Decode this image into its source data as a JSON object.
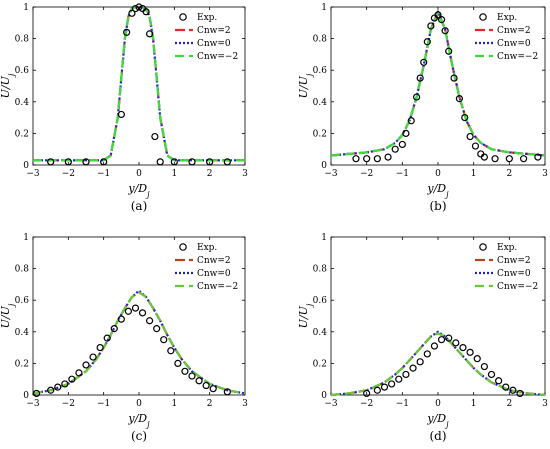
{
  "chart_data": [
    {
      "type": "line",
      "caption": "(a)",
      "xlabel": "y/D_j",
      "ylabel": "U/U_j",
      "xlim": [
        -3,
        3
      ],
      "ylim": [
        0,
        1
      ],
      "xticks": [
        -3,
        -2,
        -1,
        0,
        1,
        2,
        3
      ],
      "yticks": [
        0,
        0.2,
        0.4,
        0.6,
        0.8,
        1
      ],
      "xtick_labels": [
        "−3",
        "−2",
        "−1",
        "0",
        "1",
        "2",
        "3"
      ],
      "ytick_labels": [
        "0",
        "0.2",
        "0.4",
        "0.6",
        "0.8",
        "1"
      ],
      "legend_position": "top-right",
      "experiment": {
        "name": "Exp.",
        "x": [
          -2.5,
          -2.0,
          -1.5,
          -1.0,
          -0.5,
          -0.35,
          -0.2,
          -0.1,
          0.0,
          0.1,
          0.2,
          0.3,
          0.45,
          0.6,
          1.0,
          1.5,
          2.0,
          2.5
        ],
        "y": [
          0.02,
          0.02,
          0.02,
          0.02,
          0.32,
          0.84,
          0.96,
          0.99,
          1.0,
          0.99,
          0.97,
          0.83,
          0.18,
          0.02,
          0.02,
          0.02,
          0.02,
          0.02
        ]
      },
      "series": [
        {
          "name": "Cnw=2",
          "color": "#e8262b",
          "dash": "10,4",
          "x": [
            -3,
            -2,
            -1,
            -0.8,
            -0.6,
            -0.5,
            -0.4,
            -0.3,
            -0.2,
            -0.1,
            0,
            0.1,
            0.2,
            0.3,
            0.4,
            0.5,
            0.6,
            0.8,
            1,
            2,
            3
          ],
          "y": [
            0.03,
            0.03,
            0.03,
            0.06,
            0.3,
            0.55,
            0.8,
            0.94,
            0.99,
            1.0,
            1.0,
            1.0,
            0.99,
            0.94,
            0.8,
            0.55,
            0.3,
            0.06,
            0.03,
            0.03,
            0.03
          ]
        },
        {
          "name": "Cnw=0",
          "color": "#1f22c4",
          "dash": "2,2",
          "x": [
            -3,
            -2,
            -1,
            -0.8,
            -0.6,
            -0.5,
            -0.4,
            -0.3,
            -0.2,
            -0.1,
            0,
            0.1,
            0.2,
            0.3,
            0.4,
            0.5,
            0.6,
            0.8,
            1,
            2,
            3
          ],
          "y": [
            0.03,
            0.03,
            0.03,
            0.06,
            0.3,
            0.55,
            0.8,
            0.94,
            0.99,
            1.0,
            1.0,
            1.0,
            0.99,
            0.94,
            0.8,
            0.55,
            0.3,
            0.06,
            0.03,
            0.03,
            0.03
          ]
        },
        {
          "name": "Cnw=−2",
          "color": "#3ddc3d",
          "dash": "9,5",
          "x": [
            -3,
            -2,
            -1,
            -0.8,
            -0.6,
            -0.5,
            -0.4,
            -0.3,
            -0.2,
            -0.1,
            0,
            0.1,
            0.2,
            0.3,
            0.4,
            0.5,
            0.6,
            0.8,
            1,
            2,
            3
          ],
          "y": [
            0.03,
            0.03,
            0.03,
            0.06,
            0.3,
            0.55,
            0.8,
            0.94,
            0.99,
            1.0,
            1.0,
            1.0,
            0.99,
            0.94,
            0.8,
            0.55,
            0.3,
            0.06,
            0.03,
            0.03,
            0.03
          ]
        }
      ]
    },
    {
      "type": "line",
      "caption": "(b)",
      "xlabel": "y/D_j",
      "ylabel": "U/U_j",
      "xlim": [
        -3,
        3
      ],
      "ylim": [
        0,
        1
      ],
      "xticks": [
        -3,
        -2,
        -1,
        0,
        1,
        2,
        3
      ],
      "yticks": [
        0,
        0.2,
        0.4,
        0.6,
        0.8,
        1
      ],
      "xtick_labels": [
        "−3",
        "−2",
        "−1",
        "0",
        "1",
        "2",
        "3"
      ],
      "ytick_labels": [
        "0",
        "0.2",
        "0.4",
        "0.6",
        "0.8",
        "1"
      ],
      "legend_position": "top-right",
      "experiment": {
        "name": "Exp.",
        "x": [
          -2.3,
          -2.0,
          -1.7,
          -1.4,
          -1.2,
          -1.0,
          -0.9,
          -0.75,
          -0.6,
          -0.5,
          -0.4,
          -0.3,
          -0.2,
          -0.1,
          0.0,
          0.1,
          0.2,
          0.3,
          0.45,
          0.6,
          0.75,
          0.9,
          1.05,
          1.2,
          1.3,
          1.6,
          2.0,
          2.4,
          2.8
        ],
        "y": [
          0.04,
          0.04,
          0.04,
          0.05,
          0.1,
          0.13,
          0.2,
          0.28,
          0.43,
          0.55,
          0.65,
          0.78,
          0.88,
          0.93,
          0.95,
          0.92,
          0.85,
          0.72,
          0.55,
          0.42,
          0.3,
          0.18,
          0.12,
          0.07,
          0.05,
          0.04,
          0.04,
          0.04,
          0.05
        ]
      },
      "series": [
        {
          "name": "Cnw=2",
          "color": "#e8262b",
          "dash": "10,4",
          "x": [
            -3,
            -2.5,
            -2,
            -1.5,
            -1.2,
            -1,
            -0.8,
            -0.6,
            -0.4,
            -0.2,
            0,
            0.2,
            0.4,
            0.6,
            0.8,
            1,
            1.2,
            1.5,
            2,
            2.5,
            3
          ],
          "y": [
            0.06,
            0.07,
            0.08,
            0.1,
            0.14,
            0.19,
            0.28,
            0.43,
            0.63,
            0.86,
            0.97,
            0.86,
            0.63,
            0.43,
            0.28,
            0.19,
            0.14,
            0.1,
            0.08,
            0.07,
            0.06
          ]
        },
        {
          "name": "Cnw=0",
          "color": "#1f22c4",
          "dash": "2,2",
          "x": [
            -3,
            -2.5,
            -2,
            -1.5,
            -1.2,
            -1,
            -0.8,
            -0.6,
            -0.4,
            -0.2,
            0,
            0.2,
            0.4,
            0.6,
            0.8,
            1,
            1.2,
            1.5,
            2,
            2.5,
            3
          ],
          "y": [
            0.06,
            0.07,
            0.08,
            0.1,
            0.14,
            0.19,
            0.28,
            0.43,
            0.63,
            0.86,
            0.97,
            0.86,
            0.63,
            0.43,
            0.28,
            0.19,
            0.14,
            0.1,
            0.08,
            0.07,
            0.06
          ]
        },
        {
          "name": "Cnw=−2",
          "color": "#3ddc3d",
          "dash": "9,5",
          "x": [
            -3,
            -2.5,
            -2,
            -1.5,
            -1.2,
            -1,
            -0.8,
            -0.6,
            -0.4,
            -0.2,
            0,
            0.2,
            0.4,
            0.6,
            0.8,
            1,
            1.2,
            1.5,
            2,
            2.5,
            3
          ],
          "y": [
            0.06,
            0.07,
            0.08,
            0.1,
            0.14,
            0.19,
            0.28,
            0.43,
            0.63,
            0.86,
            0.96,
            0.86,
            0.63,
            0.43,
            0.28,
            0.19,
            0.14,
            0.1,
            0.08,
            0.07,
            0.06
          ]
        }
      ]
    },
    {
      "type": "line",
      "caption": "(c)",
      "xlabel": "y/D_j",
      "ylabel": "U/U_j",
      "xlim": [
        -3,
        3
      ],
      "ylim": [
        0,
        1
      ],
      "xticks": [
        -3,
        -2,
        -1,
        0,
        1,
        2,
        3
      ],
      "yticks": [
        0,
        0.2,
        0.4,
        0.6,
        0.8,
        1
      ],
      "xtick_labels": [
        "−3",
        "−2",
        "−1",
        "0",
        "1",
        "2",
        "3"
      ],
      "ytick_labels": [
        "0",
        "0.2",
        "0.4",
        "0.6",
        "0.8",
        "1"
      ],
      "legend_position": "top-right",
      "experiment": {
        "name": "Exp.",
        "x": [
          -2.9,
          -2.5,
          -2.3,
          -2.1,
          -1.9,
          -1.7,
          -1.5,
          -1.3,
          -1.1,
          -0.9,
          -0.7,
          -0.5,
          -0.3,
          -0.1,
          0.1,
          0.3,
          0.5,
          0.7,
          0.9,
          1.1,
          1.3,
          1.5,
          1.7,
          1.9,
          2.1,
          2.5
        ],
        "y": [
          0.01,
          0.03,
          0.05,
          0.07,
          0.1,
          0.14,
          0.19,
          0.24,
          0.3,
          0.36,
          0.42,
          0.48,
          0.53,
          0.55,
          0.52,
          0.47,
          0.42,
          0.35,
          0.28,
          0.2,
          0.15,
          0.12,
          0.09,
          0.06,
          0.04,
          0.02
        ]
      },
      "series": [
        {
          "name": "Cnw=2",
          "color": "#b5431f",
          "dash": "10,4",
          "x": [
            -3,
            -2.5,
            -2,
            -1.5,
            -1.2,
            -1,
            -0.8,
            -0.6,
            -0.4,
            -0.2,
            0,
            0.2,
            0.4,
            0.6,
            0.8,
            1,
            1.2,
            1.5,
            2,
            2.5,
            3
          ],
          "y": [
            0.01,
            0.03,
            0.07,
            0.15,
            0.23,
            0.3,
            0.38,
            0.47,
            0.55,
            0.62,
            0.65,
            0.62,
            0.55,
            0.47,
            0.38,
            0.3,
            0.23,
            0.15,
            0.07,
            0.03,
            0.01
          ]
        },
        {
          "name": "Cnw=0",
          "color": "#1f22c4",
          "dash": "2,2",
          "x": [
            -3,
            -2.5,
            -2,
            -1.5,
            -1.2,
            -1,
            -0.8,
            -0.6,
            -0.4,
            -0.2,
            0,
            0.2,
            0.4,
            0.6,
            0.8,
            1,
            1.2,
            1.5,
            2,
            2.5,
            3
          ],
          "y": [
            0.01,
            0.03,
            0.07,
            0.15,
            0.23,
            0.3,
            0.38,
            0.47,
            0.55,
            0.62,
            0.66,
            0.62,
            0.55,
            0.47,
            0.38,
            0.3,
            0.23,
            0.15,
            0.07,
            0.03,
            0.01
          ]
        },
        {
          "name": "Cnw=−2",
          "color": "#67c93a",
          "dash": "9,5",
          "x": [
            -3,
            -2.5,
            -2,
            -1.5,
            -1.2,
            -1,
            -0.8,
            -0.6,
            -0.4,
            -0.2,
            0,
            0.2,
            0.4,
            0.6,
            0.8,
            1,
            1.2,
            1.5,
            2,
            2.5,
            3
          ],
          "y": [
            0.01,
            0.03,
            0.07,
            0.15,
            0.23,
            0.3,
            0.38,
            0.47,
            0.55,
            0.62,
            0.65,
            0.62,
            0.55,
            0.47,
            0.38,
            0.3,
            0.23,
            0.15,
            0.07,
            0.03,
            0.01
          ]
        }
      ]
    },
    {
      "type": "line",
      "caption": "(d)",
      "xlabel": "y/D_j",
      "ylabel": "U/U_j",
      "xlim": [
        -3,
        3
      ],
      "ylim": [
        0,
        1
      ],
      "xticks": [
        -3,
        -2,
        -1,
        0,
        1,
        2,
        3
      ],
      "yticks": [
        0,
        0.2,
        0.4,
        0.6,
        0.8,
        1
      ],
      "xtick_labels": [
        "−3",
        "−2",
        "−1",
        "0",
        "1",
        "2",
        "3"
      ],
      "ytick_labels": [
        "0",
        "0.2",
        "0.4",
        "0.6",
        "0.8",
        "1"
      ],
      "legend_position": "top-right",
      "experiment": {
        "name": "Exp.",
        "x": [
          -2.0,
          -1.7,
          -1.5,
          -1.3,
          -1.1,
          -0.9,
          -0.7,
          -0.5,
          -0.3,
          -0.1,
          0.1,
          0.3,
          0.5,
          0.7,
          0.9,
          1.1,
          1.3,
          1.5,
          1.7,
          1.9,
          2.1,
          2.3
        ],
        "y": [
          0.01,
          0.03,
          0.05,
          0.07,
          0.1,
          0.13,
          0.17,
          0.21,
          0.26,
          0.31,
          0.35,
          0.36,
          0.33,
          0.3,
          0.27,
          0.23,
          0.18,
          0.13,
          0.09,
          0.05,
          0.03,
          0.01
        ]
      },
      "series": [
        {
          "name": "Cnw=2",
          "color": "#b5431f",
          "dash": "10,4",
          "x": [
            -3,
            -2.5,
            -2,
            -1.5,
            -1.2,
            -1,
            -0.8,
            -0.6,
            -0.4,
            -0.2,
            0,
            0.2,
            0.4,
            0.6,
            0.8,
            1,
            1.2,
            1.5,
            2,
            2.5,
            3
          ],
          "y": [
            0.0,
            0.01,
            0.03,
            0.08,
            0.13,
            0.17,
            0.22,
            0.27,
            0.32,
            0.37,
            0.39,
            0.37,
            0.32,
            0.27,
            0.22,
            0.17,
            0.13,
            0.08,
            0.03,
            0.01,
            0.0
          ]
        },
        {
          "name": "Cnw=0",
          "color": "#1f22c4",
          "dash": "2,2",
          "x": [
            -3,
            -2.5,
            -2,
            -1.5,
            -1.2,
            -1,
            -0.8,
            -0.6,
            -0.4,
            -0.2,
            0,
            0.2,
            0.4,
            0.6,
            0.8,
            1,
            1.2,
            1.5,
            2,
            2.5,
            3
          ],
          "y": [
            0.0,
            0.01,
            0.03,
            0.08,
            0.13,
            0.17,
            0.22,
            0.27,
            0.32,
            0.37,
            0.4,
            0.37,
            0.32,
            0.27,
            0.22,
            0.17,
            0.13,
            0.08,
            0.03,
            0.01,
            0.0
          ]
        },
        {
          "name": "Cnw=−2",
          "color": "#67c93a",
          "dash": "9,5",
          "x": [
            -3,
            -2.5,
            -2,
            -1.5,
            -1.2,
            -1,
            -0.8,
            -0.6,
            -0.4,
            -0.2,
            0,
            0.2,
            0.4,
            0.6,
            0.8,
            1,
            1.2,
            1.5,
            2,
            2.5,
            3
          ],
          "y": [
            0.0,
            0.01,
            0.03,
            0.08,
            0.13,
            0.17,
            0.22,
            0.27,
            0.32,
            0.37,
            0.39,
            0.37,
            0.32,
            0.27,
            0.22,
            0.17,
            0.13,
            0.08,
            0.03,
            0.01,
            0.0
          ]
        }
      ]
    }
  ]
}
